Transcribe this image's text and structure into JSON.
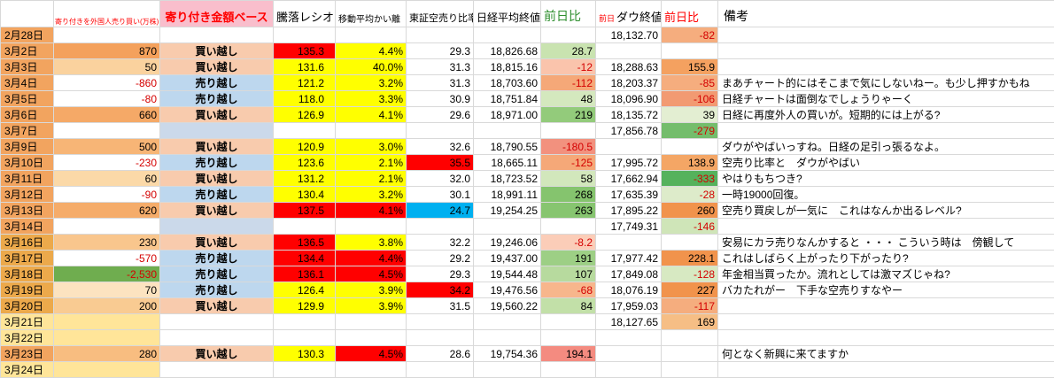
{
  "header": {
    "foreign_label": "寄り付きを外国人売り買い(万株)",
    "base_label": "寄り付き金額ベース",
    "ratio_label": "騰落レシオ",
    "deviation_label": "移動平均かい離",
    "short_label": "東証空売り比率",
    "nikkei_label": "日経平均終値",
    "nikkei_change_label": "前日比",
    "prev_label": "前日",
    "dow_label": "ダウ終値",
    "dow_change_label": "前日比",
    "note_label": "備考"
  },
  "palette": {
    "Y": "#FFFF00",
    "R": "#FF0000",
    "C": "#00B0F0",
    "BUY": "#F8CBAD",
    "SELL": "#BDD7EE",
    "EB": "#CBD9EA",
    "DO": "#F2A45F",
    "DG": "#ECA94B",
    "DP": "#FFE599"
  },
  "rows": [
    {
      "date": "2月28日",
      "date_bg": "DO",
      "dow": "18,132.70",
      "dchg": "-82",
      "dchg_bg": "#F5AD7E"
    },
    {
      "date": "3月2日",
      "date_bg": "DO",
      "foreign": "870",
      "foreign_bg": "#F4A15C",
      "stance": "買い越し",
      "stance_bg": "BUY",
      "ratio": "135.3",
      "ratio_bg": "R",
      "dev": "4.4%",
      "dev_bg": "Y",
      "short": "29.3",
      "nikkei": "18,826.68",
      "nchg": "28.7",
      "nchg_bg": "#C9E3B0"
    },
    {
      "date": "3月3日",
      "date_bg": "DO",
      "foreign": "50",
      "foreign_bg": "#FAD29E",
      "stance": "買い越し",
      "stance_bg": "BUY",
      "ratio": "131.6",
      "ratio_bg": "Y",
      "dev": "40.0%",
      "dev_bg": "Y",
      "short": "31.3",
      "nikkei": "18,815.16",
      "nchg": "-12",
      "nchg_bg": "#FAC4AC",
      "dow": "18,288.63",
      "dchg": "155.9",
      "dchg_bg": "#F4A160"
    },
    {
      "date": "3月4日",
      "date_bg": "DO",
      "foreign": "-860",
      "stance": "売り越し",
      "stance_bg": "SELL",
      "ratio": "121.2",
      "ratio_bg": "Y",
      "dev": "3.2%",
      "dev_bg": "Y",
      "short": "31.3",
      "nikkei": "18,703.60",
      "nchg": "-112",
      "nchg_bg": "#F5A878",
      "dow": "18,203.37",
      "dchg": "-85",
      "dchg_bg": "#F5AD7E",
      "note": "まあチャート的にはそこまで気にしないねー。も少し押すかもね"
    },
    {
      "date": "3月5日",
      "date_bg": "DO",
      "foreign": "-80",
      "stance": "売り越し",
      "stance_bg": "SELL",
      "ratio": "118.0",
      "ratio_bg": "Y",
      "dev": "3.3%",
      "dev_bg": "Y",
      "short": "30.9",
      "nikkei": "18,751.84",
      "nchg": "48",
      "nchg_bg": "#D4E8BE",
      "dow": "18,096.90",
      "dchg": "-106",
      "dchg_bg": "#F29A72",
      "note": "日経チャートは面倒なでしょうりゃーく"
    },
    {
      "date": "3月6日",
      "date_bg": "DO",
      "foreign": "660",
      "foreign_bg": "#F5A967",
      "stance": "買い越し",
      "stance_bg": "BUY",
      "ratio": "126.9",
      "ratio_bg": "Y",
      "dev": "4.1%",
      "dev_bg": "Y",
      "short": "29.6",
      "nikkei": "18,971.00",
      "nchg": "219",
      "nchg_bg": "#93CB7B",
      "dow": "18,135.72",
      "dchg": "39",
      "dchg_bg": "#E3EED2",
      "note": "日経に再度外人の買いが。短期的には上がる?"
    },
    {
      "date": "3月7日",
      "date_bg": "DO",
      "stance_bg": "EB",
      "dow": "17,856.78",
      "dchg": "-279",
      "dchg_bg": "#74BD6C"
    },
    {
      "date": "3月9日",
      "date_bg": "DO",
      "foreign": "500",
      "foreign_bg": "#F7B576",
      "stance": "買い越し",
      "stance_bg": "BUY",
      "ratio": "120.9",
      "ratio_bg": "Y",
      "dev": "3.0%",
      "dev_bg": "Y",
      "short": "32.6",
      "nikkei": "18,790.55",
      "nchg": "-180.5",
      "nchg_bg": "#F2917E",
      "note": "ダウがやばいっすね。日経の足引っ張るなよ。"
    },
    {
      "date": "3月10日",
      "date_bg": "DO",
      "foreign": "-230",
      "stance": "売り越し",
      "stance_bg": "SELL",
      "ratio": "123.6",
      "ratio_bg": "Y",
      "dev": "2.1%",
      "dev_bg": "Y",
      "short": "35.5",
      "short_bg": "R",
      "nikkei": "18,665.11",
      "nchg": "-125",
      "nchg_bg": "#F5A878",
      "dow": "17,995.72",
      "dchg": "138.9",
      "dchg_bg": "#F4A665",
      "note": "空売り比率と　ダウがやばい"
    },
    {
      "date": "3月11日",
      "date_bg": "DO",
      "foreign": "60",
      "foreign_bg": "#FBD9A8",
      "stance": "買い越し",
      "stance_bg": "BUY",
      "ratio": "131.2",
      "ratio_bg": "Y",
      "dev": "2.1%",
      "dev_bg": "Y",
      "short": "32.0",
      "nikkei": "18,723.52",
      "nchg": "58",
      "nchg_bg": "#D2E7BC",
      "dow": "17,662.94",
      "dchg": "-333",
      "dchg_bg": "#55B25C",
      "note": "やはりもちつき?"
    },
    {
      "date": "3月12日",
      "date_bg": "DO",
      "foreign": "-90",
      "stance": "売り越し",
      "stance_bg": "SELL",
      "ratio": "130.4",
      "ratio_bg": "Y",
      "dev": "3.2%",
      "dev_bg": "Y",
      "short": "30.1",
      "nikkei": "18,991.11",
      "nchg": "268",
      "nchg_bg": "#85C46E",
      "dow": "17,635.39",
      "dchg": "-28",
      "dchg_bg": "#DDEBCA",
      "note": "一時19000回復。"
    },
    {
      "date": "3月13日",
      "date_bg": "DO",
      "foreign": "620",
      "foreign_bg": "#F5AC6A",
      "stance": "買い越し",
      "stance_bg": "BUY",
      "ratio": "137.5",
      "ratio_bg": "R",
      "dev": "4.1%",
      "dev_bg": "R",
      "short": "24.7",
      "short_bg": "C",
      "nikkei": "19,254.25",
      "nchg": "263",
      "nchg_bg": "#87C570",
      "dow": "17,895.22",
      "dchg": "260",
      "dchg_bg": "#F1934C",
      "note": "空売り買戻しが一気に　これはなんか出るレベル?"
    },
    {
      "date": "3月14日",
      "date_bg": "DO",
      "stance_bg": "EB",
      "dow": "17,749.31",
      "dchg": "-146",
      "dchg_bg": "#CFE5B8"
    },
    {
      "date": "3月16日",
      "date_bg": "DG",
      "foreign": "230",
      "foreign_bg": "#F9C68D",
      "stance": "買い越し",
      "stance_bg": "BUY",
      "ratio": "136.5",
      "ratio_bg": "R",
      "dev": "3.8%",
      "dev_bg": "Y",
      "short": "32.2",
      "nikkei": "19,246.06",
      "nchg": "-8.2",
      "nchg_bg": "#FBCDB8",
      "note": "安易にカラ売りなんかすると ・・・ こういう時は　傍観して"
    },
    {
      "date": "3月17日",
      "date_bg": "DG",
      "foreign": "-570",
      "stance": "売り越し",
      "stance_bg": "SELL",
      "ratio": "134.4",
      "ratio_bg": "R",
      "dev": "4.4%",
      "dev_bg": "R",
      "short": "29.2",
      "nikkei": "19,437.00",
      "nchg": "191",
      "nchg_bg": "#9DCF85",
      "dow": "17,977.42",
      "dchg": "228.1",
      "dchg_bg": "#F1934C",
      "note": "これはしばらく上がったり下がったり?"
    },
    {
      "date": "3月18日",
      "date_bg": "DG",
      "foreign": "-2,530",
      "foreign_bg": "#6FAD4F",
      "stance": "売り越し",
      "stance_bg": "SELL",
      "ratio": "136.1",
      "ratio_bg": "R",
      "dev": "4.5%",
      "dev_bg": "R",
      "short": "29.3",
      "nikkei": "19,544.48",
      "nchg": "107",
      "nchg_bg": "#B7DA9E",
      "dow": "17,849.08",
      "dchg": "-128",
      "dchg_bg": "#D7E9C2",
      "note": "年金相当買ったか。流れとしては激マズじゃね?"
    },
    {
      "date": "3月19日",
      "date_bg": "DG",
      "foreign": "70",
      "foreign_bg": "#FCE3C0",
      "stance": "売り越し",
      "stance_bg": "SELL",
      "ratio": "126.4",
      "ratio_bg": "Y",
      "dev": "3.9%",
      "dev_bg": "Y",
      "short": "34.2",
      "short_bg": "R",
      "nikkei": "19,476.56",
      "nchg": "-68",
      "nchg_bg": "#F7B68C",
      "dow": "18,076.19",
      "dchg": "227",
      "dchg_bg": "#F1934C",
      "note": "バカたれがー　下手な空売りすなやー"
    },
    {
      "date": "3月20日",
      "date_bg": "DG",
      "foreign": "200",
      "foreign_bg": "#F9CB92",
      "stance": "買い越し",
      "stance_bg": "BUY",
      "ratio": "129.9",
      "ratio_bg": "Y",
      "dev": "3.9%",
      "dev_bg": "Y",
      "short": "31.5",
      "nikkei": "19,560.22",
      "nchg": "84",
      "nchg_bg": "#C2E0A8",
      "dow": "17,959.03",
      "dchg": "-117",
      "dchg_bg": "#F5AD7E"
    },
    {
      "date": "3月21日",
      "date_bg": "DP",
      "foreign_bg": "DP",
      "dow": "18,127.65",
      "dchg": "169",
      "dchg_bg": "#F6BE85"
    },
    {
      "date": "3月22日",
      "date_bg": "DP",
      "foreign_bg": "DP"
    },
    {
      "date": "3月23日",
      "date_bg": "DO",
      "foreign": "280",
      "foreign_bg": "#F8BD80",
      "stance": "買い越し",
      "stance_bg": "BUY",
      "ratio": "130.3",
      "ratio_bg": "Y",
      "dev": "4.5%",
      "dev_bg": "R",
      "short": "28.6",
      "nikkei": "19,754.36",
      "nchg": "194.1",
      "nchg_bg": "#F48B80",
      "note": "何となく新興に来てますか"
    },
    {
      "date": "3月24日",
      "date_bg": "DP",
      "foreign_bg": "DP"
    }
  ]
}
